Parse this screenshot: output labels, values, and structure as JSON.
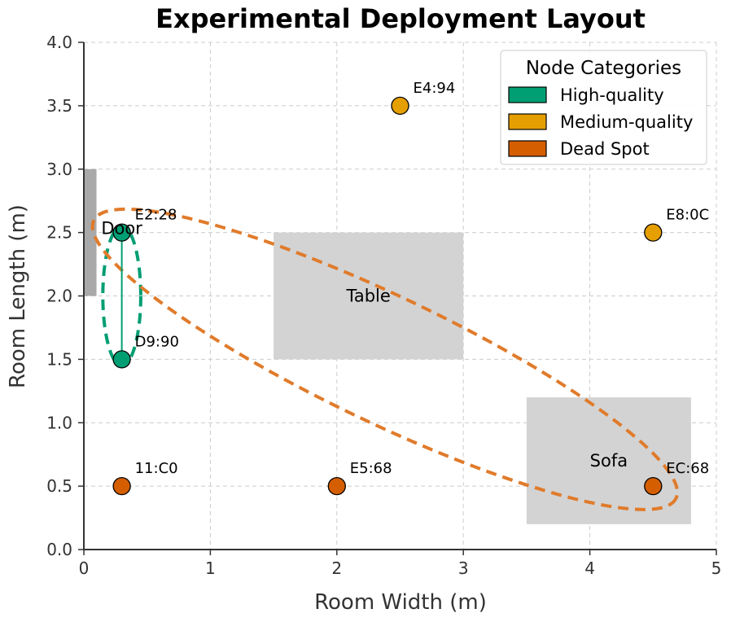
{
  "chart_data": {
    "type": "scatter",
    "title": "Experimental Deployment Layout",
    "xlabel": "Room Width (m)",
    "ylabel": "Room Length (m)",
    "xlim": [
      0,
      5
    ],
    "ylim": [
      0,
      4
    ],
    "xticks": [
      "0",
      "1",
      "2",
      "3",
      "4",
      "5"
    ],
    "yticks": [
      "0.0",
      "0.5",
      "1.0",
      "1.5",
      "2.0",
      "2.5",
      "3.0",
      "3.5",
      "4.0"
    ],
    "grid": true,
    "legend": {
      "title": "Node Categories",
      "placement": "top-right",
      "entries": [
        {
          "label": "High-quality",
          "color": "#009E73"
        },
        {
          "label": "Medium-quality",
          "color": "#E69F00"
        },
        {
          "label": "Dead Spot",
          "color": "#D55E00"
        }
      ]
    },
    "obstacles": [
      {
        "label": "Door",
        "x0": 0.0,
        "x1": 0.1,
        "y0": 2.0,
        "y1": 3.0,
        "color": "#a9a9a9"
      },
      {
        "label": "Table",
        "x0": 1.5,
        "x1": 3.0,
        "y0": 1.5,
        "y1": 2.5,
        "color": "#d3d3d3"
      },
      {
        "label": "Sofa",
        "x0": 3.5,
        "x1": 4.8,
        "y0": 0.2,
        "y1": 1.2,
        "color": "#d3d3d3"
      }
    ],
    "points": [
      {
        "label": "E2:28",
        "x": 0.3,
        "y": 2.5,
        "category": "High-quality",
        "color": "#009E73"
      },
      {
        "label": "D9:90",
        "x": 0.3,
        "y": 1.5,
        "category": "High-quality",
        "color": "#009E73"
      },
      {
        "label": "E4:94",
        "x": 2.5,
        "y": 3.5,
        "category": "Medium-quality",
        "color": "#E69F00"
      },
      {
        "label": "E8:0C",
        "x": 4.5,
        "y": 2.5,
        "category": "Medium-quality",
        "color": "#E69F00"
      },
      {
        "label": "11:C0",
        "x": 0.3,
        "y": 0.5,
        "category": "Dead Spot",
        "color": "#D55E00"
      },
      {
        "label": "E5:68",
        "x": 2.0,
        "y": 0.5,
        "category": "Dead Spot",
        "color": "#D55E00"
      },
      {
        "label": "EC:68",
        "x": 4.5,
        "y": 0.5,
        "category": "Dead Spot",
        "color": "#D55E00"
      }
    ],
    "links": [
      {
        "from": "E2:28",
        "to": "D9:90",
        "color": "#009E73"
      }
    ],
    "clusters": [
      {
        "name": "high-quality-cluster",
        "cx": 0.3,
        "cy": 2.0,
        "rx_m": 0.15,
        "ry_m": 0.55,
        "angle": 0,
        "color": "#009E73"
      },
      {
        "name": "dead-spot-cluster",
        "cx": 2.38,
        "cy": 1.5,
        "rx_m": 2.55,
        "ry_m": 0.5,
        "angle_data": -25.5,
        "color": "#E07B2B"
      }
    ]
  }
}
